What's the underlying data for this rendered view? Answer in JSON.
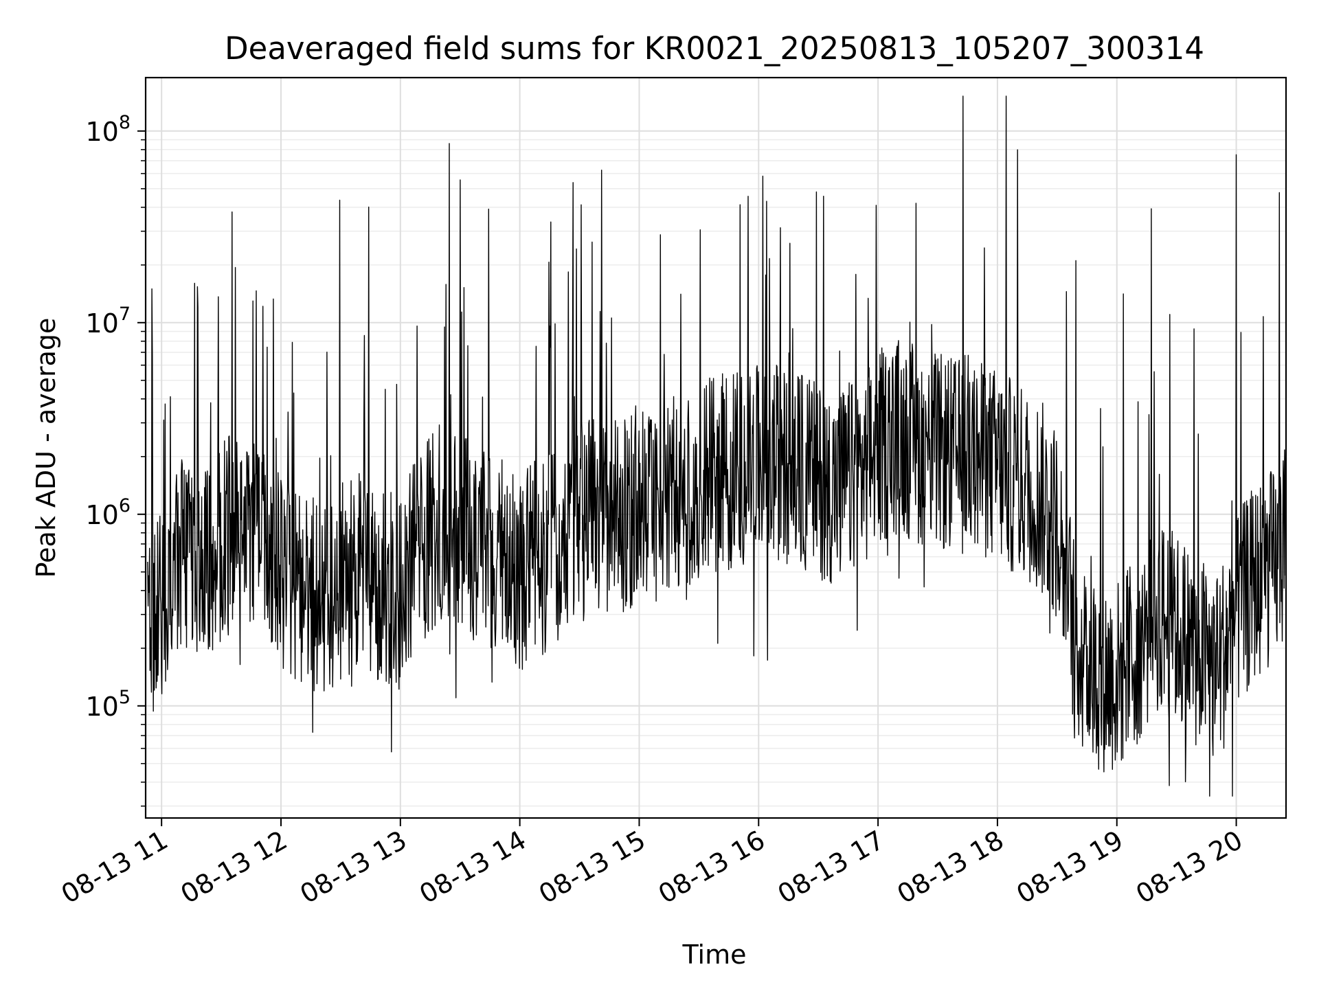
{
  "chart_data": {
    "type": "line",
    "title": "Deaveraged field sums for KR0021_20250813_105207_300314",
    "xlabel": "Time",
    "ylabel": "Peak ADU - average",
    "xlim": [
      "2025-08-13 10:52",
      "2025-08-13 20:25"
    ],
    "ylim": [
      26000,
      190000000
    ],
    "yscale": "log",
    "grid": true,
    "line_color": "#000000",
    "x_ticks": [
      {
        "time": "2025-08-13 11:00",
        "label": "08-13 11"
      },
      {
        "time": "2025-08-13 12:00",
        "label": "08-13 12"
      },
      {
        "time": "2025-08-13 13:00",
        "label": "08-13 13"
      },
      {
        "time": "2025-08-13 14:00",
        "label": "08-13 14"
      },
      {
        "time": "2025-08-13 15:00",
        "label": "08-13 15"
      },
      {
        "time": "2025-08-13 16:00",
        "label": "08-13 16"
      },
      {
        "time": "2025-08-13 17:00",
        "label": "08-13 17"
      },
      {
        "time": "2025-08-13 18:00",
        "label": "08-13 18"
      },
      {
        "time": "2025-08-13 19:00",
        "label": "08-13 19"
      },
      {
        "time": "2025-08-13 20:00",
        "label": "08-13 20"
      }
    ],
    "y_ticks": [
      {
        "value": 100000,
        "base": "10",
        "exp": "5"
      },
      {
        "value": 1000000,
        "base": "10",
        "exp": "6"
      },
      {
        "value": 10000000,
        "base": "10",
        "exp": "7"
      },
      {
        "value": 100000000,
        "base": "10",
        "exp": "8"
      }
    ],
    "series": [
      {
        "x": [
          "2025-08-13 10:53",
          "2025-08-13 11:00",
          "2025-08-13 11:10",
          "2025-08-13 11:20",
          "2025-08-13 11:30",
          "2025-08-13 11:40",
          "2025-08-13 11:50",
          "2025-08-13 12:00",
          "2025-08-13 12:10",
          "2025-08-13 12:20",
          "2025-08-13 12:30",
          "2025-08-13 12:40",
          "2025-08-13 12:50",
          "2025-08-13 13:00",
          "2025-08-13 13:10",
          "2025-08-13 13:20",
          "2025-08-13 13:30",
          "2025-08-13 13:40",
          "2025-08-13 13:50",
          "2025-08-13 14:00",
          "2025-08-13 14:10",
          "2025-08-13 14:20",
          "2025-08-13 14:30",
          "2025-08-13 14:40",
          "2025-08-13 14:50",
          "2025-08-13 15:00",
          "2025-08-13 15:10",
          "2025-08-13 15:20",
          "2025-08-13 15:30",
          "2025-08-13 15:40",
          "2025-08-13 15:50",
          "2025-08-13 16:00",
          "2025-08-13 16:10",
          "2025-08-13 16:20",
          "2025-08-13 16:30",
          "2025-08-13 16:40",
          "2025-08-13 16:50",
          "2025-08-13 17:00",
          "2025-08-13 17:10",
          "2025-08-13 17:20",
          "2025-08-13 17:30",
          "2025-08-13 17:40",
          "2025-08-13 17:50",
          "2025-08-13 18:00",
          "2025-08-13 18:10",
          "2025-08-13 18:20",
          "2025-08-13 18:30",
          "2025-08-13 18:40",
          "2025-08-13 18:50",
          "2025-08-13 19:00",
          "2025-08-13 19:10",
          "2025-08-13 19:20",
          "2025-08-13 19:30",
          "2025-08-13 19:40",
          "2025-08-13 19:50",
          "2025-08-13 20:00",
          "2025-08-13 20:10",
          "2025-08-13 20:20",
          "2025-08-13 20:25"
        ],
        "values": [
          300000,
          300000,
          600000,
          500000,
          700000,
          900000,
          800000,
          500000,
          400000,
          350000,
          450000,
          500000,
          400000,
          400000,
          700000,
          900000,
          800000,
          700000,
          600000,
          500000,
          600000,
          700000,
          900000,
          1000000,
          1000000,
          1000000,
          1200000,
          1300000,
          1500000,
          1600000,
          1800000,
          1800000,
          1900000,
          1700000,
          1500000,
          1400000,
          1600000,
          2200000,
          2600000,
          2300000,
          2100000,
          2000000,
          1900000,
          1800000,
          1500000,
          1300000,
          900000,
          200000,
          150000,
          140000,
          200000,
          300000,
          250000,
          200000,
          150000,
          300000,
          450000,
          550000,
          700000
        ]
      }
    ]
  }
}
